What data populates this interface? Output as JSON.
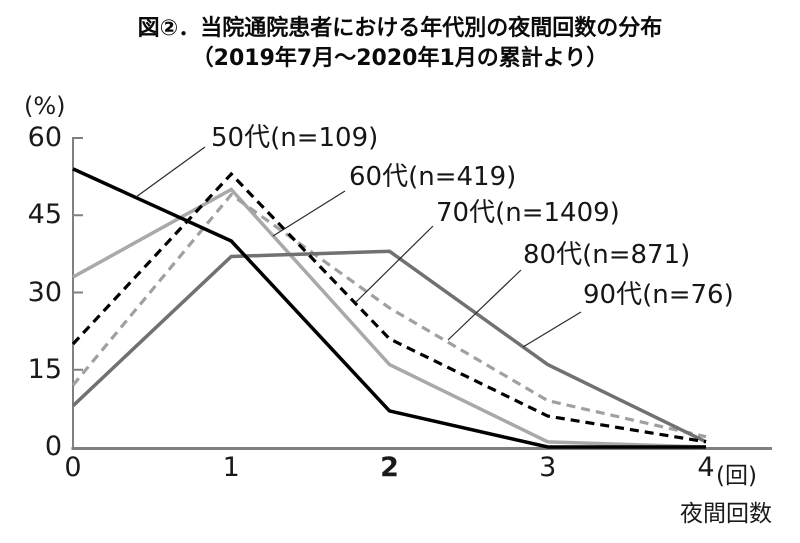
{
  "title": {
    "line1": "図②．当院通院患者における年代別の夜間回数の分布",
    "line2": "（2019年7月～2020年1月の累計より）"
  },
  "chart_data": {
    "type": "line",
    "x": [
      0,
      1,
      2,
      3,
      4
    ],
    "xlabel": "夜間回数",
    "x_axis_unit": "(回)",
    "ylabel": "(%)",
    "ylim": [
      0,
      60
    ],
    "yticks": [
      0,
      15,
      30,
      45,
      60
    ],
    "x_bold_tick": 2,
    "grid": false,
    "legend_position": "inline labels with leader lines",
    "series": [
      {
        "id": "50s",
        "name": "50代(n=109)",
        "values": [
          54,
          40,
          7,
          0,
          0
        ],
        "color": "#000000",
        "style": "solid"
      },
      {
        "id": "60s",
        "name": "60代(n=419)",
        "values": [
          33,
          50,
          16,
          1,
          0
        ],
        "color": "#a9a9a9",
        "style": "solid"
      },
      {
        "id": "70s",
        "name": "70代(n=1409)",
        "values": [
          20,
          53,
          21,
          6,
          1
        ],
        "color": "#000000",
        "style": "dashed"
      },
      {
        "id": "80s",
        "name": "80代(n=871)",
        "values": [
          12,
          49,
          27,
          9,
          2
        ],
        "color": "#a0a0a0",
        "style": "dashed"
      },
      {
        "id": "90s",
        "name": "90代(n=76)",
        "values": [
          8,
          37,
          38,
          16,
          1
        ],
        "color": "#717171",
        "style": "solid"
      }
    ],
    "axis_color": "#808080"
  }
}
